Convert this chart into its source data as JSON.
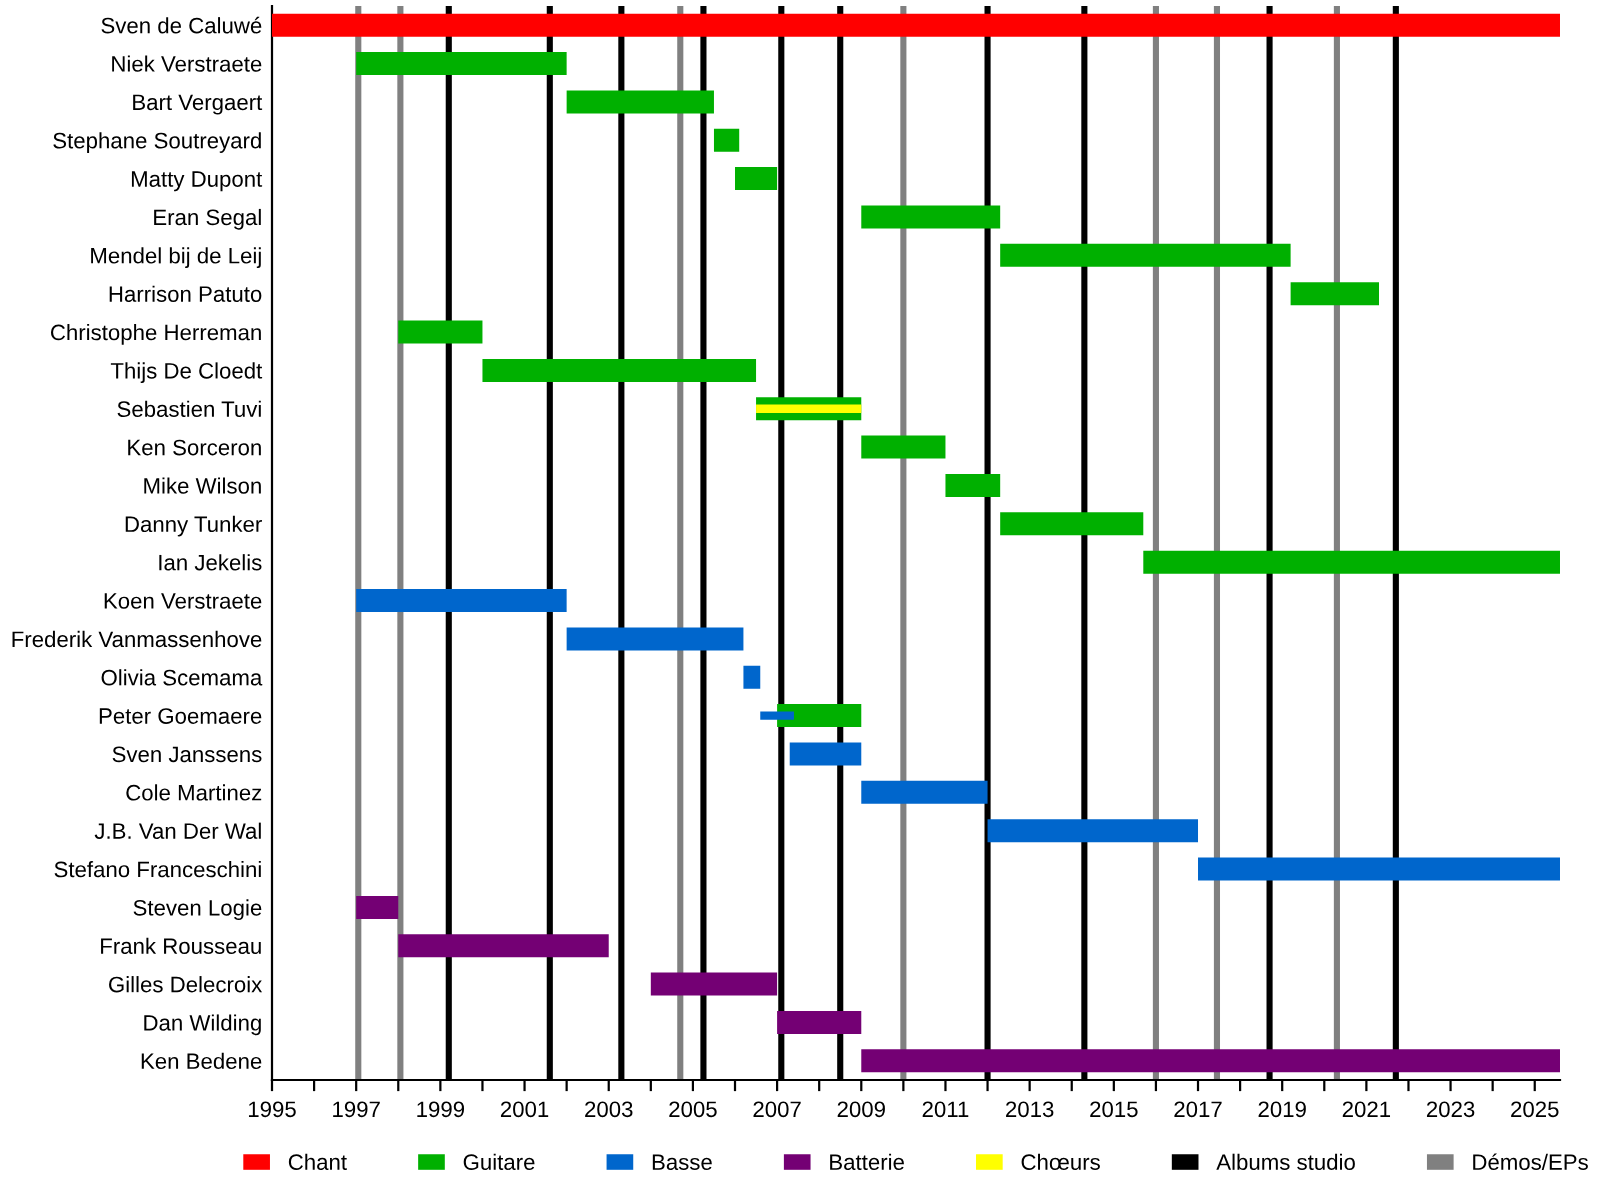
{
  "chart_data": {
    "type": "bar",
    "orientation": "horizontal",
    "categories": [
      "Sven de Caluwé",
      "Niek Verstraete",
      "Bart Vergaert",
      "Stephane Soutreyard",
      "Matty Dupont",
      "Eran Segal",
      "Mendel bij de Leij",
      "Harrison Patuto",
      "Christophe Herreman",
      "Thijs De Cloedt",
      "Sebastien Tuvi",
      "Ken Sorceron",
      "Mike Wilson",
      "Danny Tunker",
      "Ian Jekelis",
      "Koen Verstraete",
      "Frederik Vanmassenhove",
      "Olivia Scemama",
      "Peter Goemaere",
      "Sven Janssens",
      "Cole Martinez",
      "J.B. Van Der Wal",
      "Stefano Franceschini",
      "Steven Logie",
      "Frank Rousseau",
      "Gilles Delecroix",
      "Dan Wilding",
      "Ken Bedene"
    ],
    "series": [
      {
        "name": "Chant",
        "color": "#ff0000",
        "base": [
          1995,
          null,
          null,
          null,
          null,
          null,
          null,
          null,
          null,
          null,
          null,
          null,
          null,
          null,
          null,
          null,
          null,
          null,
          null,
          null,
          null,
          null,
          null,
          null,
          null,
          null,
          null,
          null
        ],
        "values": [
          30.6,
          null,
          null,
          null,
          null,
          null,
          null,
          null,
          null,
          null,
          null,
          null,
          null,
          null,
          null,
          null,
          null,
          null,
          null,
          null,
          null,
          null,
          null,
          null,
          null,
          null,
          null,
          null
        ]
      },
      {
        "name": "Guitare",
        "color": "#00b000",
        "base": [
          null,
          1997,
          2002,
          2005.5,
          2006,
          2009,
          2012.3,
          2019.2,
          1998,
          2000,
          2006.5,
          2009,
          2011,
          2012.3,
          2015.7,
          null,
          null,
          null,
          2007,
          null,
          null,
          null,
          null,
          null,
          null,
          null,
          null,
          null
        ],
        "values": [
          null,
          5,
          3.5,
          0.6,
          1,
          3.3,
          6.9,
          2.1,
          2,
          6.5,
          2.5,
          2,
          1.3,
          3.4,
          9.9,
          null,
          null,
          null,
          2,
          null,
          null,
          null,
          null,
          null,
          null,
          null,
          null,
          null
        ]
      },
      {
        "name": "Basse",
        "color": "#0066cc",
        "base": [
          null,
          null,
          null,
          null,
          null,
          null,
          null,
          null,
          null,
          null,
          null,
          null,
          null,
          null,
          null,
          1997,
          2002,
          2006.2,
          2006.6,
          2007.3,
          2009,
          2012,
          2017,
          null,
          null,
          null,
          null,
          null
        ],
        "values": [
          null,
          null,
          null,
          null,
          null,
          null,
          null,
          null,
          null,
          null,
          null,
          null,
          null,
          null,
          null,
          5,
          4.2,
          0.4,
          0.8,
          1.7,
          3,
          5,
          8.6,
          null,
          null,
          null,
          null,
          null
        ]
      },
      {
        "name": "Batterie",
        "color": "#740074",
        "base": [
          null,
          null,
          null,
          null,
          null,
          null,
          null,
          null,
          null,
          null,
          null,
          null,
          null,
          null,
          null,
          null,
          null,
          null,
          null,
          null,
          null,
          null,
          null,
          1997,
          1998,
          2004,
          2007,
          2009
        ],
        "values": [
          null,
          null,
          null,
          null,
          null,
          null,
          null,
          null,
          null,
          null,
          null,
          null,
          null,
          null,
          null,
          null,
          null,
          null,
          null,
          null,
          null,
          null,
          null,
          1,
          5,
          3,
          2,
          16.6
        ]
      },
      {
        "name": "Chœurs",
        "color": "#ffff00",
        "base": [
          null,
          null,
          null,
          null,
          null,
          null,
          null,
          null,
          null,
          null,
          2006.5,
          null,
          null,
          null,
          null,
          null,
          null,
          null,
          null,
          null,
          null,
          null,
          null,
          null,
          null,
          null,
          null,
          null
        ],
        "values": [
          null,
          null,
          null,
          null,
          null,
          null,
          null,
          null,
          null,
          null,
          2.5,
          null,
          null,
          null,
          null,
          null,
          null,
          null,
          null,
          null,
          null,
          null,
          null,
          null,
          null,
          null,
          null,
          null
        ]
      }
    ],
    "ref_lines": [
      {
        "axis": "x",
        "value": 1999.2,
        "color": "#000000",
        "label": "Albums studio"
      },
      {
        "axis": "x",
        "value": 1997.05,
        "color": "#808080",
        "label": "Démos/EPs"
      },
      {
        "axis": "x",
        "value": 1998.05,
        "color": "#808080"
      },
      {
        "axis": "x",
        "value": 2001.6,
        "color": "#000000"
      },
      {
        "axis": "x",
        "value": 2003.3,
        "color": "#000000"
      },
      {
        "axis": "x",
        "value": 2004.7,
        "color": "#808080"
      },
      {
        "axis": "x",
        "value": 2005.25,
        "color": "#000000"
      },
      {
        "axis": "x",
        "value": 2007.1,
        "color": "#000000"
      },
      {
        "axis": "x",
        "value": 2008.5,
        "color": "#000000"
      },
      {
        "axis": "x",
        "value": 2010.0,
        "color": "#808080"
      },
      {
        "axis": "x",
        "value": 2012.0,
        "color": "#000000"
      },
      {
        "axis": "x",
        "value": 2014.3,
        "color": "#000000"
      },
      {
        "axis": "x",
        "value": 2016.0,
        "color": "#808080"
      },
      {
        "axis": "x",
        "value": 2017.45,
        "color": "#808080"
      },
      {
        "axis": "x",
        "value": 2018.7,
        "color": "#000000"
      },
      {
        "axis": "x",
        "value": 2020.3,
        "color": "#808080"
      },
      {
        "axis": "x",
        "value": 2021.7,
        "color": "#000000"
      }
    ],
    "xlim": [
      1995,
      2025.6
    ],
    "xticks": [
      1995,
      {
        "value": 1996,
        "label": null
      },
      1997,
      {
        "value": 1998,
        "label": null
      },
      1999,
      {
        "value": 2000,
        "label": null
      },
      2001,
      {
        "value": 2002,
        "label": null
      },
      2003,
      {
        "value": 2004,
        "label": null
      },
      2005,
      {
        "value": 2006,
        "label": null
      },
      2007,
      {
        "value": 2008,
        "label": null
      },
      2009,
      {
        "value": 2010,
        "label": null
      },
      2011,
      {
        "value": 2012,
        "label": null
      },
      2013,
      {
        "value": 2014,
        "label": null
      },
      2015,
      {
        "value": 2016,
        "label": null
      },
      2017,
      {
        "value": 2018,
        "label": null
      },
      2019,
      {
        "value": 2020,
        "label": null
      },
      2021,
      {
        "value": 2022,
        "label": null
      },
      2023,
      {
        "value": 2024,
        "label": null
      },
      2025
    ],
    "legend": "bottom",
    "grid": false
  }
}
